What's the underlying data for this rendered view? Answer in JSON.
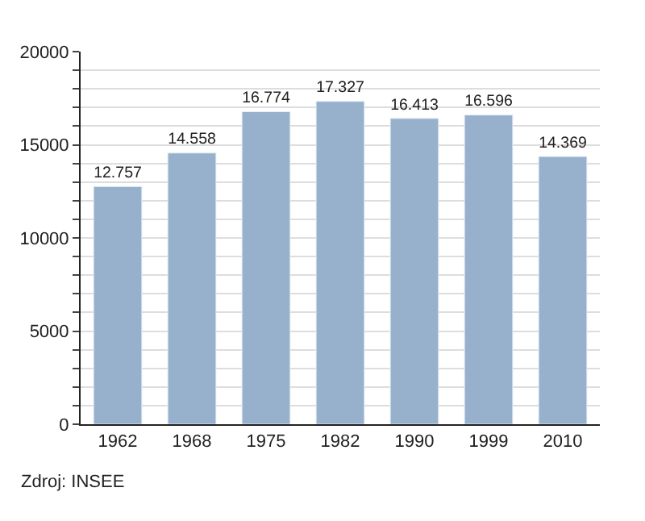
{
  "chart_data": {
    "type": "bar",
    "categories": [
      "1962",
      "1968",
      "1975",
      "1982",
      "1990",
      "1999",
      "2010"
    ],
    "values": [
      12757,
      14558,
      16774,
      17327,
      16413,
      16596,
      14369
    ],
    "value_labels": [
      "12.757",
      "14.558",
      "16.774",
      "17.327",
      "16.413",
      "16.596",
      "14.369"
    ],
    "color": "#97b1cc",
    "ylim": [
      0,
      20000
    ],
    "yticks": [
      0,
      {
        "value": 1000,
        "label": null
      },
      {
        "value": 2000,
        "label": null
      },
      {
        "value": 3000,
        "label": null
      },
      {
        "value": 4000,
        "label": null
      },
      5000,
      {
        "value": 6000,
        "label": null
      },
      {
        "value": 7000,
        "label": null
      },
      {
        "value": 8000,
        "label": null
      },
      {
        "value": 9000,
        "label": null
      },
      10000,
      {
        "value": 11000,
        "label": null
      },
      {
        "value": 12000,
        "label": null
      },
      {
        "value": 13000,
        "label": null
      },
      {
        "value": 14000,
        "label": null
      },
      15000,
      {
        "value": 16000,
        "label": null
      },
      {
        "value": 17000,
        "label": null
      },
      {
        "value": 18000,
        "label": null
      },
      {
        "value": 19000,
        "label": null
      },
      20000
    ],
    "grid": "y",
    "annotations": [
      "Zdroj: INSEE"
    ]
  }
}
